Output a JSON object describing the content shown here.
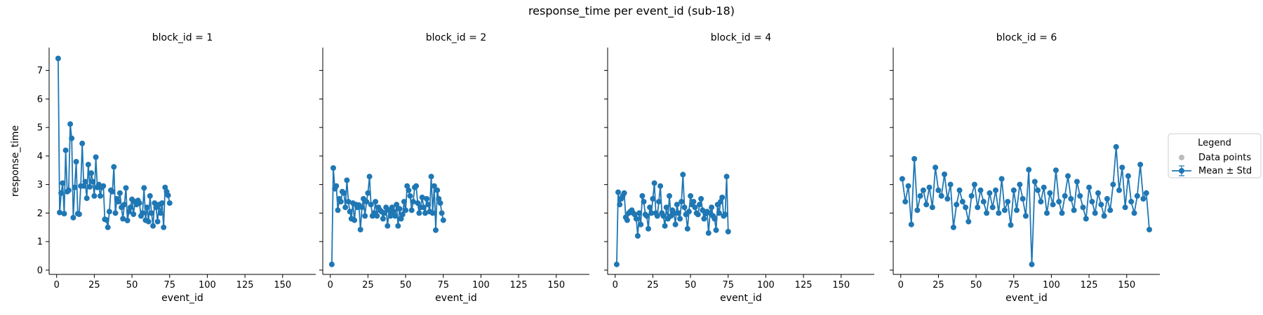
{
  "figure": {
    "title": "response_time per event_id (sub-18)"
  },
  "legend": {
    "title": "Legend",
    "items": [
      {
        "label": "Data points",
        "color": "#bbbbbb"
      },
      {
        "label": "Mean ± Std",
        "color": "#1f77b4"
      }
    ],
    "placement": "right"
  },
  "chart_data": [
    {
      "type": "line",
      "title": "block_id = 1",
      "xlabel": "event_id",
      "ylabel": "response_time",
      "xlim": [
        -5,
        172
      ],
      "ylim": [
        -0.15,
        7.8
      ],
      "xticks": [
        0,
        25,
        50,
        75,
        100,
        125,
        150
      ],
      "yticks": [
        0,
        1,
        2,
        3,
        4,
        5,
        6,
        7
      ],
      "grid": false,
      "series": [
        {
          "color": "#1f77b4",
          "x": [
            1,
            2,
            3,
            4,
            5,
            6,
            7,
            8,
            9,
            10,
            11,
            12,
            13,
            14,
            15,
            16,
            17,
            18,
            19,
            20,
            21,
            22,
            23,
            24,
            25,
            26,
            27,
            28,
            29,
            30,
            31,
            32,
            33,
            34,
            35,
            36,
            37,
            38,
            39,
            40,
            41,
            42,
            43,
            44,
            45,
            46,
            47,
            48,
            49,
            50,
            51,
            52,
            53,
            54,
            55,
            56,
            57,
            58,
            59,
            60,
            61,
            62,
            63,
            64,
            65,
            66,
            67,
            68,
            69,
            70,
            71,
            72,
            73,
            74,
            75
          ],
          "y": [
            7.42,
            2.02,
            2.7,
            3.05,
            1.98,
            4.2,
            2.75,
            2.8,
            5.12,
            4.62,
            1.84,
            2.9,
            3.8,
            1.98,
            1.96,
            2.95,
            4.44,
            2.95,
            3.1,
            2.52,
            3.7,
            2.92,
            3.4,
            3.1,
            2.6,
            3.96,
            2.9,
            3.0,
            2.6,
            2.9,
            2.95,
            1.78,
            1.76,
            1.5,
            2.05,
            2.8,
            2.75,
            3.62,
            2.0,
            2.5,
            2.4,
            2.7,
            2.2,
            1.8,
            2.3,
            2.88,
            1.74,
            2.05,
            2.2,
            2.48,
            1.96,
            2.4,
            2.3,
            2.44,
            2.35,
            1.9,
            2.0,
            2.88,
            1.75,
            2.2,
            1.7,
            2.6,
            2.0,
            1.55,
            2.35,
            2.2,
            1.7,
            2.3,
            2.0,
            2.35,
            1.5,
            2.9,
            2.75,
            2.62,
            2.35
          ]
        }
      ]
    },
    {
      "type": "line",
      "title": "block_id = 2",
      "xlabel": "event_id",
      "ylabel": "",
      "xlim": [
        -5,
        172
      ],
      "ylim": [
        -0.15,
        7.8
      ],
      "xticks": [
        0,
        25,
        50,
        75,
        100,
        125,
        150
      ],
      "yticks": [
        0,
        1,
        2,
        3,
        4,
        5,
        6,
        7
      ],
      "grid": false,
      "series": [
        {
          "color": "#1f77b4",
          "x": [
            1,
            2,
            3,
            4,
            5,
            6,
            7,
            8,
            9,
            10,
            11,
            12,
            13,
            14,
            15,
            16,
            17,
            18,
            19,
            20,
            21,
            22,
            23,
            24,
            25,
            26,
            27,
            28,
            29,
            30,
            31,
            32,
            33,
            34,
            35,
            36,
            37,
            38,
            39,
            40,
            41,
            42,
            43,
            44,
            45,
            46,
            47,
            48,
            49,
            50,
            51,
            52,
            53,
            54,
            55,
            56,
            57,
            58,
            59,
            60,
            61,
            62,
            63,
            64,
            65,
            66,
            67,
            68,
            69,
            70,
            71,
            72,
            73,
            74,
            75
          ],
          "y": [
            0.2,
            3.58,
            2.85,
            2.95,
            2.1,
            2.5,
            2.4,
            2.75,
            2.7,
            2.2,
            3.15,
            2.4,
            2.05,
            1.8,
            2.35,
            1.75,
            2.3,
            2.2,
            2.28,
            1.42,
            2.2,
            2.5,
            1.9,
            2.4,
            2.7,
            3.28,
            2.3,
            1.9,
            2.0,
            2.4,
            1.9,
            2.2,
            2.1,
            2.05,
            1.8,
            2.0,
            2.2,
            1.55,
            2.1,
            1.9,
            2.2,
            2.05,
            1.9,
            2.3,
            1.55,
            2.15,
            1.8,
            1.95,
            2.4,
            2.1,
            2.95,
            2.8,
            2.6,
            2.1,
            2.4,
            2.9,
            2.95,
            2.35,
            2.0,
            2.2,
            2.55,
            2.2,
            2.0,
            2.5,
            2.3,
            2.05,
            3.28,
            2.0,
            2.95,
            1.4,
            2.8,
            2.5,
            2.35,
            2.0,
            1.75
          ]
        }
      ]
    },
    {
      "type": "line",
      "title": "block_id = 4",
      "xlabel": "event_id",
      "ylabel": "",
      "xlim": [
        -5,
        172
      ],
      "ylim": [
        -0.15,
        7.8
      ],
      "xticks": [
        0,
        25,
        50,
        75,
        100,
        125,
        150
      ],
      "yticks": [
        0,
        1,
        2,
        3,
        4,
        5,
        6,
        7
      ],
      "grid": false,
      "series": [
        {
          "color": "#1f77b4",
          "x": [
            1,
            2,
            3,
            4,
            5,
            6,
            7,
            8,
            9,
            10,
            11,
            12,
            13,
            14,
            15,
            16,
            17,
            18,
            19,
            20,
            21,
            22,
            23,
            24,
            25,
            26,
            27,
            28,
            29,
            30,
            31,
            32,
            33,
            34,
            35,
            36,
            37,
            38,
            39,
            40,
            41,
            42,
            43,
            44,
            45,
            46,
            47,
            48,
            49,
            50,
            51,
            52,
            53,
            54,
            55,
            56,
            57,
            58,
            59,
            60,
            61,
            62,
            63,
            64,
            65,
            66,
            67,
            68,
            69,
            70,
            71,
            72,
            73,
            74,
            75
          ],
          "y": [
            0.2,
            2.73,
            2.3,
            2.5,
            2.6,
            2.7,
            1.85,
            1.75,
            2.0,
            2.05,
            2.1,
            2.0,
            1.95,
            1.8,
            1.2,
            2.0,
            1.6,
            2.6,
            2.4,
            1.95,
            1.9,
            1.45,
            2.2,
            2.0,
            2.5,
            3.05,
            2.0,
            1.9,
            2.4,
            2.95,
            2.0,
            1.9,
            1.55,
            2.2,
            1.8,
            2.6,
            1.9,
            2.1,
            2.0,
            1.6,
            2.3,
            2.0,
            1.8,
            2.4,
            3.35,
            2.2,
            1.95,
            1.45,
            2.05,
            2.6,
            2.3,
            2.4,
            2.2,
            2.0,
            1.95,
            2.3,
            2.5,
            2.1,
            1.8,
            1.98,
            2.05,
            1.3,
            2.0,
            2.2,
            1.9,
            1.8,
            1.4,
            2.3,
            2.0,
            2.4,
            2.55,
            1.9,
            1.95,
            3.28,
            1.35
          ]
        }
      ]
    },
    {
      "type": "line",
      "title": "block_id = 6",
      "xlabel": "event_id",
      "ylabel": "",
      "xlim": [
        -5,
        172
      ],
      "ylim": [
        -0.15,
        7.8
      ],
      "xticks": [
        0,
        25,
        50,
        75,
        100,
        125,
        150
      ],
      "yticks": [
        0,
        1,
        2,
        3,
        4,
        5,
        6,
        7
      ],
      "grid": false,
      "series": [
        {
          "color": "#1f77b4",
          "x": [
            1,
            3,
            5,
            7,
            9,
            11,
            13,
            15,
            17,
            19,
            21,
            23,
            25,
            27,
            29,
            31,
            33,
            35,
            37,
            39,
            41,
            43,
            45,
            47,
            49,
            51,
            53,
            55,
            57,
            59,
            61,
            63,
            65,
            67,
            69,
            71,
            73,
            75,
            77,
            79,
            81,
            83,
            85,
            87,
            89,
            91,
            93,
            95,
            97,
            99,
            101,
            103,
            105,
            107,
            109,
            111,
            113,
            115,
            117,
            119,
            121,
            123,
            125,
            127,
            129,
            131,
            133,
            135,
            137,
            139,
            141,
            143,
            145,
            147,
            149,
            151,
            153,
            155,
            157,
            159,
            161,
            163,
            165
          ],
          "y": [
            3.2,
            2.4,
            2.95,
            1.6,
            3.9,
            2.1,
            2.6,
            2.8,
            2.3,
            2.9,
            2.2,
            3.6,
            2.8,
            2.6,
            3.36,
            2.5,
            3.0,
            1.5,
            2.3,
            2.8,
            2.4,
            2.2,
            1.7,
            2.6,
            3.0,
            2.2,
            2.8,
            2.4,
            2.0,
            2.7,
            2.2,
            2.8,
            2.0,
            3.2,
            2.1,
            2.4,
            1.58,
            2.8,
            2.1,
            3.0,
            2.5,
            1.9,
            3.52,
            0.2,
            3.1,
            2.8,
            2.4,
            2.9,
            2.0,
            2.7,
            2.3,
            3.5,
            2.4,
            2.0,
            2.6,
            3.3,
            2.5,
            2.1,
            3.1,
            2.6,
            2.2,
            1.8,
            2.9,
            2.4,
            2.0,
            2.7,
            2.3,
            1.9,
            2.5,
            2.1,
            3.0,
            4.32,
            2.8,
            3.6,
            2.2,
            3.3,
            2.4,
            2.0,
            2.6,
            3.7,
            2.5,
            2.7,
            1.42
          ]
        }
      ]
    }
  ]
}
